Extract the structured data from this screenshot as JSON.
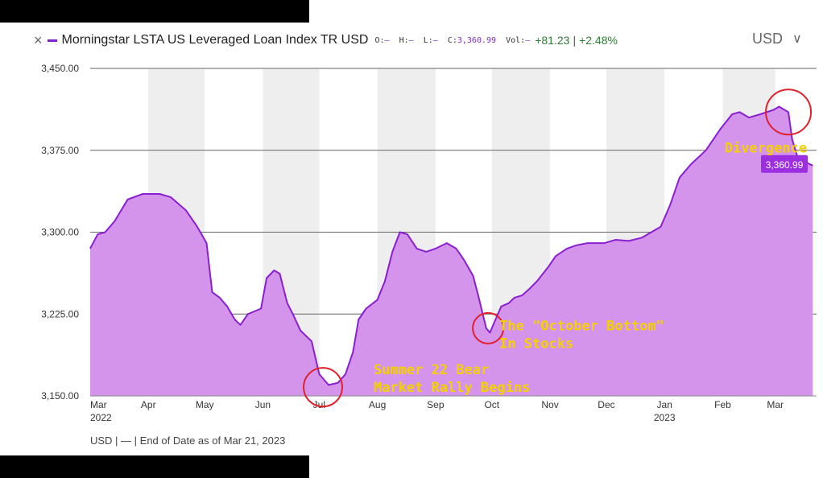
{
  "header": {
    "close_icon": "×",
    "title": "Morningstar LSTA US Leveraged Loan Index TR USD",
    "o_label": "O:",
    "o_value": "—",
    "h_label": "H:",
    "h_value": "—",
    "l_label": "L:",
    "l_value": "—",
    "c_label": "C:",
    "c_value": "3,360.99",
    "vol_label": "Vol:",
    "vol_value": "—",
    "change": "+81.23",
    "separator": "|",
    "change_pct": "+2.48%",
    "currency": "USD",
    "dropdown_icon": "∨"
  },
  "footer": {
    "text": "USD | — | End of Date as of Mar 21, 2023"
  },
  "colors": {
    "line": "#8a1fd0",
    "fill": "#d594ec",
    "band": "#eeeeee",
    "annotation": "#f5d000",
    "circle": "#e0202a",
    "label_bg": "#9b2fe0",
    "change": "#2e7d32"
  },
  "chart_data": {
    "type": "area",
    "series": [
      {
        "x": [
          "2022-03-01",
          "2022-03-05",
          "2022-03-09",
          "2022-03-14",
          "2022-03-21",
          "2022-03-29",
          "2022-04-01",
          "2022-04-07",
          "2022-04-13",
          "2022-04-21",
          "2022-04-27",
          "2022-05-02",
          "2022-05-05",
          "2022-05-09",
          "2022-05-13",
          "2022-05-17",
          "2022-05-20",
          "2022-05-24",
          "2022-05-31",
          "2022-06-03",
          "2022-06-07",
          "2022-06-10",
          "2022-06-14",
          "2022-06-17",
          "2022-06-21",
          "2022-06-27",
          "2022-07-01",
          "2022-07-06",
          "2022-07-11",
          "2022-07-15",
          "2022-07-19",
          "2022-07-22",
          "2022-07-26",
          "2022-08-01",
          "2022-08-05",
          "2022-08-09",
          "2022-08-13",
          "2022-08-17",
          "2022-08-22",
          "2022-08-27",
          "2022-09-01",
          "2022-09-07",
          "2022-09-12",
          "2022-09-16",
          "2022-09-21",
          "2022-09-24",
          "2022-09-28",
          "2022-09-30",
          "2022-10-03",
          "2022-10-06",
          "2022-10-10",
          "2022-10-13",
          "2022-10-17",
          "2022-10-21",
          "2022-10-25",
          "2022-10-31",
          "2022-11-04",
          "2022-11-10",
          "2022-11-15",
          "2022-11-21",
          "2022-11-30",
          "2022-12-06",
          "2022-12-13",
          "2022-12-20",
          "2022-12-30",
          "2023-01-04",
          "2023-01-09",
          "2023-01-15",
          "2023-01-23",
          "2023-01-31",
          "2023-02-06",
          "2023-02-10",
          "2023-02-15",
          "2023-02-21",
          "2023-02-28",
          "2023-03-03",
          "2023-03-06",
          "2023-03-08",
          "2023-03-10",
          "2023-03-13",
          "2023-03-16",
          "2023-03-21"
        ],
        "y": [
          3285,
          3298,
          3300,
          3310,
          3330,
          3335,
          3335,
          3335,
          3332,
          3320,
          3305,
          3290,
          3245,
          3240,
          3232,
          3220,
          3215,
          3225,
          3230,
          3258,
          3265,
          3262,
          3235,
          3225,
          3210,
          3200,
          3170,
          3160,
          3162,
          3170,
          3190,
          3220,
          3230,
          3238,
          3255,
          3282,
          3300,
          3298,
          3285,
          3282,
          3285,
          3290,
          3285,
          3275,
          3260,
          3240,
          3212,
          3208,
          3220,
          3232,
          3235,
          3240,
          3242,
          3248,
          3255,
          3268,
          3278,
          3285,
          3288,
          3290,
          3290,
          3293,
          3292,
          3295,
          3305,
          3325,
          3350,
          3362,
          3375,
          3395,
          3408,
          3410,
          3405,
          3408,
          3412,
          3415,
          3412,
          3410,
          3385,
          3368,
          3365,
          3360.99
        ]
      }
    ],
    "xlabels": [
      "Mar",
      "Apr",
      "May",
      "Jun",
      "Jul",
      "Aug",
      "Sep",
      "Oct",
      "Nov",
      "Dec",
      "Jan",
      "Feb",
      "Mar"
    ],
    "xlabels_dates": [
      "2022-03-01",
      "2022-04-01",
      "2022-05-01",
      "2022-06-01",
      "2022-07-01",
      "2022-08-01",
      "2022-09-01",
      "2022-10-01",
      "2022-11-01",
      "2022-12-01",
      "2023-01-01",
      "2023-02-01",
      "2023-03-01"
    ],
    "year_labels": [
      {
        "text": "2022",
        "date": "2022-03-01"
      },
      {
        "text": "2023",
        "date": "2023-01-01"
      }
    ],
    "yticks": [
      3150,
      3225,
      3300,
      3375,
      3450
    ],
    "ytick_labels": [
      "3,150.00",
      "3,225.00",
      "3,300.00",
      "3,375.00",
      "3,450.00"
    ],
    "ylim": [
      3150,
      3450
    ],
    "xlim": [
      "2022-03-01",
      "2023-03-23"
    ],
    "last_label": "3,360.99",
    "last_value": 3360.99,
    "annotations": [
      {
        "text": [
          "Summer 22 Bear",
          "Market Rally Begins"
        ],
        "date": "2022-07-30",
        "y": 3170,
        "circle": {
          "date": "2022-07-03",
          "y": 3158
        }
      },
      {
        "text": [
          "The \"October Bottom\"",
          "In Stocks"
        ],
        "date": "2022-10-05",
        "y": 3210,
        "circle": {
          "date": "2022-09-29",
          "y": 3212
        }
      },
      {
        "text": [
          "Divergence"
        ],
        "date": "2023-02-02",
        "y": 3373,
        "circle": {
          "date": "2023-03-08",
          "y": 3410
        }
      }
    ],
    "grid": true
  }
}
